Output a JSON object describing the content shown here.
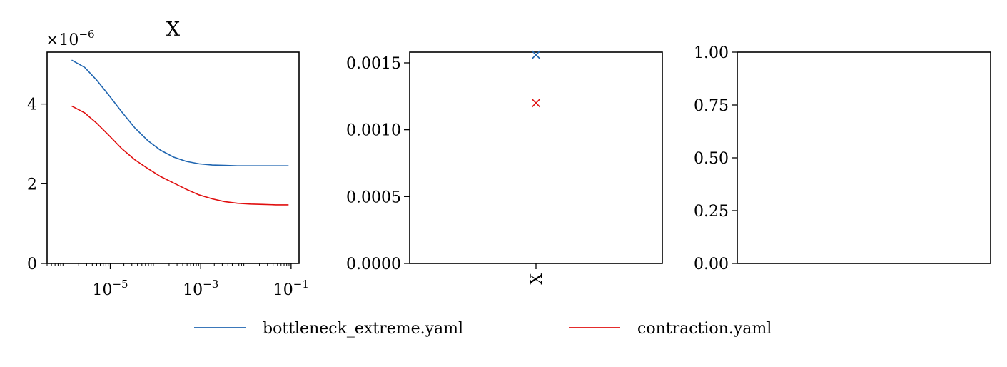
{
  "figure": {
    "legend": [
      {
        "label": "bottleneck_extreme.yaml",
        "color": "#1f65b0"
      },
      {
        "label": "contraction.yaml",
        "color": "#e00e0e"
      }
    ]
  },
  "chart_data": [
    {
      "type": "line",
      "title": "X",
      "xscale": "log",
      "y_multiplier_label": "×10",
      "y_multiplier_exp": "−6",
      "xlim": [
        4e-07,
        0.15
      ],
      "ylim": [
        0,
        5.3
      ],
      "xticks": [
        {
          "value": 1e-05,
          "base": "10",
          "exp": "−5"
        },
        {
          "value": 0.001,
          "base": "10",
          "exp": "−3"
        },
        {
          "value": 0.1,
          "base": "10",
          "exp": "−1"
        }
      ],
      "yticks": [
        {
          "value": 0,
          "label": "0"
        },
        {
          "value": 2,
          "label": "2"
        },
        {
          "value": 4,
          "label": "4"
        }
      ],
      "x": [
        1.4e-06,
        2.7e-06,
        5e-06,
        9.6e-06,
        1.8e-05,
        3.5e-05,
        6.8e-05,
        0.00013,
        0.00025,
        0.00048,
        0.00092,
        0.0018,
        0.0034,
        0.0065,
        0.0125,
        0.024,
        0.046,
        0.088
      ],
      "series": [
        {
          "name": "bottleneck_extreme.yaml",
          "color": "#1f65b0",
          "values": [
            5.1,
            4.92,
            4.6,
            4.2,
            3.8,
            3.4,
            3.08,
            2.84,
            2.67,
            2.56,
            2.5,
            2.47,
            2.46,
            2.45,
            2.45,
            2.45,
            2.45,
            2.45
          ]
        },
        {
          "name": "contraction.yaml",
          "color": "#e00e0e",
          "values": [
            3.95,
            3.78,
            3.52,
            3.2,
            2.88,
            2.6,
            2.38,
            2.18,
            2.02,
            1.86,
            1.72,
            1.62,
            1.55,
            1.51,
            1.49,
            1.48,
            1.47,
            1.47
          ]
        }
      ]
    },
    {
      "type": "scatter",
      "marker": "x",
      "categories": [
        "X"
      ],
      "ylim": [
        0,
        0.00158
      ],
      "yticks": [
        {
          "value": 0,
          "label": "0.0000"
        },
        {
          "value": 0.0005,
          "label": "0.0005"
        },
        {
          "value": 0.001,
          "label": "0.0010"
        },
        {
          "value": 0.0015,
          "label": "0.0015"
        }
      ],
      "series": [
        {
          "name": "bottleneck_extreme.yaml",
          "color": "#1f65b0",
          "values": [
            0.00156
          ]
        },
        {
          "name": "contraction.yaml",
          "color": "#e00e0e",
          "values": [
            0.0012
          ]
        }
      ]
    },
    {
      "type": "line",
      "ylim": [
        0,
        1
      ],
      "yticks": [
        {
          "value": 0,
          "label": "0.00"
        },
        {
          "value": 0.25,
          "label": "0.25"
        },
        {
          "value": 0.5,
          "label": "0.50"
        },
        {
          "value": 0.75,
          "label": "0.75"
        },
        {
          "value": 1,
          "label": "1.00"
        }
      ],
      "series": []
    }
  ]
}
